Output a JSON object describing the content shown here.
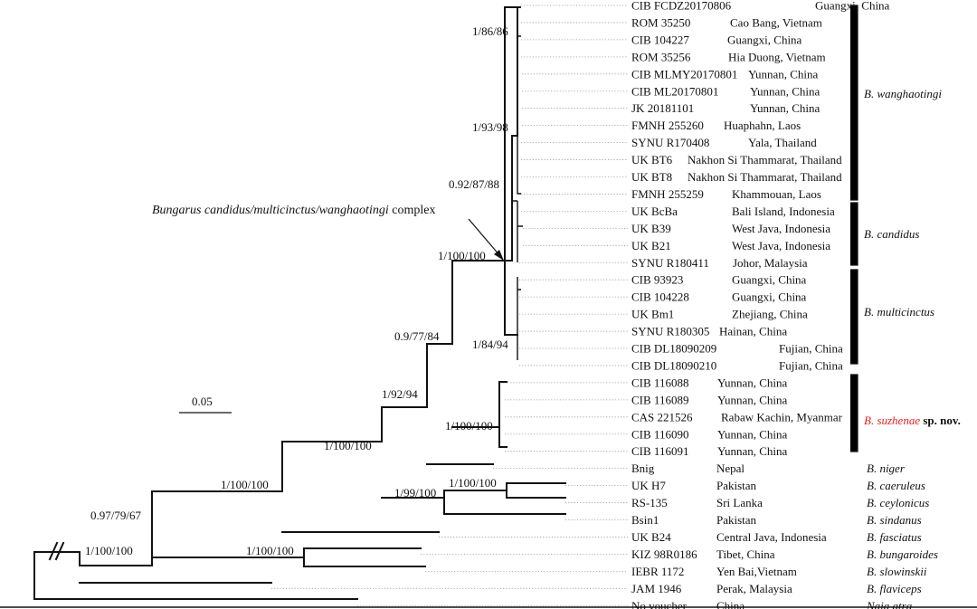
{
  "taxa": [
    {
      "voucher": "CIB FCDZ20170806",
      "locality": "Guangxi, China"
    },
    {
      "voucher": "ROM 35250",
      "locality": "Cao Bang, Vietnam"
    },
    {
      "voucher": "CIB 104227",
      "locality": "Guangxi, China"
    },
    {
      "voucher": "ROM 35256",
      "locality": "Hia Duong, Vietnam"
    },
    {
      "voucher": "CIB MLMY20170801",
      "locality": "Yunnan, China"
    },
    {
      "voucher": "CIB ML20170801",
      "locality": "Yunnan, China"
    },
    {
      "voucher": "JK 20181101",
      "locality": "Yunnan, China"
    },
    {
      "voucher": "FMNH 255260",
      "locality": "Huaphahn, Laos"
    },
    {
      "voucher": "SYNU R170408",
      "locality": "Yala, Thailand"
    },
    {
      "voucher": "UK BT6",
      "locality": "Nakhon Si Thammarat, Thailand"
    },
    {
      "voucher": "UK BT8",
      "locality": "Nakhon Si Thammarat, Thailand"
    },
    {
      "voucher": "FMNH 255259",
      "locality": "Khammouan, Laos"
    },
    {
      "voucher": "UK BcBa",
      "locality": "Bali Island, Indonesia"
    },
    {
      "voucher": "UK B39",
      "locality": "West Java, Indonesia"
    },
    {
      "voucher": "UK B21",
      "locality": "West Java, Indonesia"
    },
    {
      "voucher": "SYNU R180411",
      "locality": "Johor, Malaysia"
    },
    {
      "voucher": "CIB 93923",
      "locality": "Guangxi, China"
    },
    {
      "voucher": "CIB 104228",
      "locality": "Guangxi, China"
    },
    {
      "voucher": "UK Bm1",
      "locality": "Zhejiang, China"
    },
    {
      "voucher": "SYNU R180305",
      "locality": "Hainan, China"
    },
    {
      "voucher": "CIB DL18090209",
      "locality": "Fujian, China"
    },
    {
      "voucher": "CIB DL18090210",
      "locality": "Fujian, China"
    },
    {
      "voucher": "CIB 116088",
      "locality": "Yunnan, China"
    },
    {
      "voucher": "CIB 116089",
      "locality": "Yunnan, China"
    },
    {
      "voucher": "CAS 221526",
      "locality": "Rabaw Kachin, Myanmar"
    },
    {
      "voucher": "CIB 116090",
      "locality": "Yunnan, China"
    },
    {
      "voucher": "CIB 116091",
      "locality": "Yunnan, China"
    },
    {
      "voucher": "Bnig",
      "locality": "Nepal",
      "species": "B. niger"
    },
    {
      "voucher": "UK H7",
      "locality": "Pakistan",
      "species": "B. caeruleus"
    },
    {
      "voucher": "RS-135",
      "locality": "Sri Lanka",
      "species": "B. ceylonicus"
    },
    {
      "voucher": "Bsin1",
      "locality": "Pakistan",
      "species": "B. sindanus"
    },
    {
      "voucher": "UK B24",
      "locality": "Central Java, Indonesia",
      "species": "B. fasciatus"
    },
    {
      "voucher": "KIZ 98R0186",
      "locality": "Tibet, China",
      "species": "B. bungaroides"
    },
    {
      "voucher": "IEBR 1172",
      "locality": "Yen Bai,Vietnam",
      "species": "B. slowinskii"
    },
    {
      "voucher": "JAM 1946",
      "locality": "Perak, Malaysia",
      "species": "B. flaviceps"
    },
    {
      "voucher": "No voucher",
      "locality": "China",
      "species": "Naja atra"
    }
  ],
  "clades": [
    {
      "name": "B. wanghaotingi",
      "suffix": ""
    },
    {
      "name": "B. candidus",
      "suffix": ""
    },
    {
      "name": "B. multicinctus",
      "suffix": ""
    },
    {
      "name": "B. suzhenae",
      "suffix": " sp. nov."
    }
  ],
  "support": [
    "1/86/86",
    "1/93/98",
    "0.92/87/88",
    "1/100/100",
    "1/84/94",
    "0.9/77/84",
    "1/100/100",
    "1/92/94",
    "1/100/100",
    "1/100/100",
    "1/99/100",
    "1/100/100",
    "0.97/79/67",
    "1/100/100",
    "1/100/100"
  ],
  "complex_label": {
    "prefix": "Bungarus candidus/multicinctus/wanghaotingi",
    "suffix": " complex"
  },
  "scale_bar": "0.05",
  "colors": {
    "new_species": "#e8211d",
    "line": "#111111",
    "guide": "#999999"
  }
}
